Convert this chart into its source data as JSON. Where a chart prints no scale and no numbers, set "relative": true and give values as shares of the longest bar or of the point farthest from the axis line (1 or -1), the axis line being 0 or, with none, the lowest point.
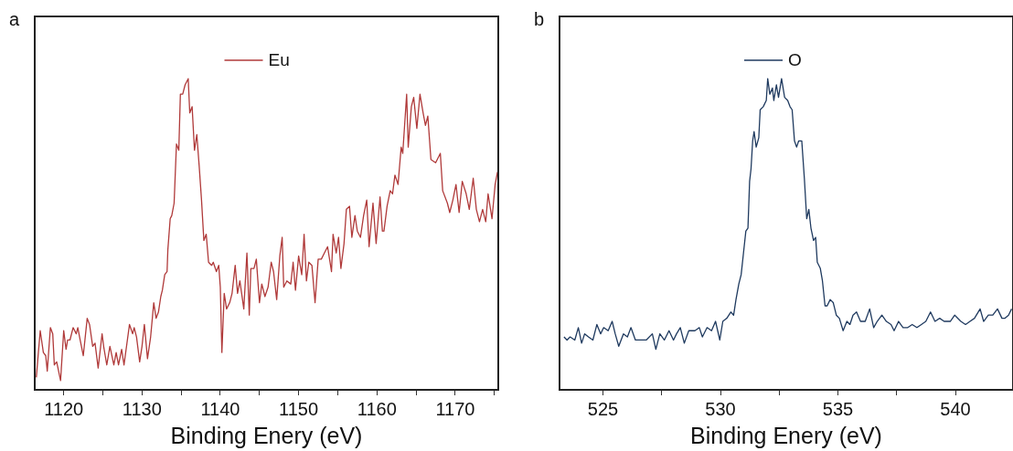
{
  "chart_data": [
    {
      "type": "line",
      "relative": true,
      "xlabel": "Binding Enery (eV)",
      "annotations": [
        "a"
      ],
      "legend": "top",
      "marker": "none",
      "line_style": "solid",
      "grid": false,
      "tick_labels": "x",
      "xlim": [
        1116.3,
        1175.5
      ],
      "xticks": [
        1120,
        {
          "value": 1125,
          "label": null
        },
        1130,
        {
          "value": 1135,
          "label": null
        },
        1140,
        {
          "value": 1145,
          "label": null
        },
        1150,
        {
          "value": 1155,
          "label": null
        },
        1160,
        {
          "value": 1165,
          "label": null
        },
        1170,
        {
          "value": 1175,
          "label": null
        }
      ],
      "series": [
        {
          "name": "Eu",
          "color": "#b03a3a",
          "x": [
            1116.5,
            1117.0,
            1117.4,
            1117.7,
            1117.9,
            1118.3,
            1118.6,
            1118.8,
            1119.1,
            1119.6,
            1120.0,
            1120.3,
            1120.5,
            1120.8,
            1121.2,
            1121.6,
            1121.8,
            1122.1,
            1122.5,
            1123.0,
            1123.3,
            1123.7,
            1124.0,
            1124.4,
            1124.9,
            1125.1,
            1125.5,
            1125.9,
            1126.4,
            1126.7,
            1127.0,
            1127.4,
            1127.7,
            1128.4,
            1128.8,
            1129.0,
            1129.3,
            1129.7,
            1130.0,
            1130.3,
            1130.7,
            1131.1,
            1131.5,
            1131.8,
            1132.1,
            1132.4,
            1132.6,
            1132.9,
            1133.2,
            1133.3,
            1133.6,
            1133.8,
            1134.1,
            1134.4,
            1134.7,
            1134.9,
            1135.2,
            1135.5,
            1135.9,
            1136.1,
            1136.4,
            1136.7,
            1137.0,
            1137.3,
            1137.6,
            1137.9,
            1138.2,
            1138.5,
            1138.9,
            1139.1,
            1139.5,
            1139.8,
            1140.0,
            1140.2,
            1140.5,
            1140.8,
            1141.2,
            1141.5,
            1141.9,
            1142.2,
            1142.5,
            1143.0,
            1143.4,
            1143.7,
            1143.9,
            1144.3,
            1144.6,
            1145.0,
            1145.3,
            1145.7,
            1146.1,
            1146.5,
            1146.8,
            1147.2,
            1147.6,
            1147.9,
            1148.1,
            1148.5,
            1149.0,
            1149.3,
            1149.6,
            1150.0,
            1150.4,
            1150.7,
            1151.0,
            1151.3,
            1151.7,
            1152.1,
            1152.5,
            1152.9,
            1153.3,
            1153.7,
            1154.2,
            1154.4,
            1154.8,
            1155.1,
            1155.4,
            1155.8,
            1156.1,
            1156.5,
            1156.8,
            1157.2,
            1157.5,
            1157.9,
            1158.3,
            1158.7,
            1159.0,
            1159.5,
            1159.9,
            1160.4,
            1160.7,
            1160.9,
            1161.3,
            1161.7,
            1162.0,
            1162.3,
            1162.7,
            1163.1,
            1163.3,
            1163.8,
            1164.0,
            1164.4,
            1164.7,
            1165.1,
            1165.5,
            1165.9,
            1166.2,
            1166.5,
            1166.9,
            1167.5,
            1168.1,
            1168.4,
            1169.0,
            1169.3,
            1169.7,
            1170.1,
            1170.5,
            1170.9,
            1171.4,
            1171.8,
            1172.3,
            1172.7,
            1173.1,
            1173.5,
            1173.9,
            1174.2,
            1174.7,
            1175.1,
            1175.4
          ],
          "values": [
            0.04,
            0.19,
            0.12,
            0.11,
            0.06,
            0.2,
            0.18,
            0.08,
            0.09,
            0.03,
            0.19,
            0.13,
            0.16,
            0.16,
            0.2,
            0.18,
            0.2,
            0.16,
            0.11,
            0.23,
            0.21,
            0.14,
            0.15,
            0.07,
            0.18,
            0.14,
            0.08,
            0.14,
            0.08,
            0.12,
            0.08,
            0.13,
            0.08,
            0.21,
            0.18,
            0.2,
            0.17,
            0.09,
            0.14,
            0.21,
            0.1,
            0.17,
            0.28,
            0.23,
            0.25,
            0.3,
            0.32,
            0.37,
            0.38,
            0.45,
            0.55,
            0.56,
            0.6,
            0.79,
            0.77,
            0.95,
            0.95,
            0.98,
            1,
            0.89,
            0.91,
            0.77,
            0.82,
            0.72,
            0.61,
            0.48,
            0.5,
            0.41,
            0.4,
            0.41,
            0.38,
            0.4,
            0.33,
            0.12,
            0.31,
            0.26,
            0.28,
            0.31,
            0.4,
            0.31,
            0.35,
            0.26,
            0.44,
            0.24,
            0.39,
            0.39,
            0.42,
            0.28,
            0.34,
            0.3,
            0.33,
            0.41,
            0.38,
            0.29,
            0.43,
            0.49,
            0.33,
            0.35,
            0.34,
            0.41,
            0.32,
            0.43,
            0.37,
            0.5,
            0.35,
            0.41,
            0.4,
            0.28,
            0.42,
            0.42,
            0.44,
            0.46,
            0.38,
            0.5,
            0.44,
            0.49,
            0.39,
            0.47,
            0.58,
            0.59,
            0.49,
            0.56,
            0.51,
            0.49,
            0.56,
            0.61,
            0.46,
            0.6,
            0.47,
            0.62,
            0.51,
            0.51,
            0.59,
            0.64,
            0.63,
            0.69,
            0.66,
            0.78,
            0.76,
            0.95,
            0.78,
            0.91,
            0.94,
            0.84,
            0.95,
            0.89,
            0.85,
            0.88,
            0.74,
            0.73,
            0.76,
            0.64,
            0.6,
            0.57,
            0.61,
            0.66,
            0.57,
            0.67,
            0.63,
            0.58,
            0.68,
            0.58,
            0.54,
            0.58,
            0.54,
            0.63,
            0.55,
            0.66,
            0.7
          ]
        }
      ]
    },
    {
      "type": "line",
      "relative": true,
      "xlabel": "Binding Enery (eV)",
      "annotations": [
        "b"
      ],
      "legend": "top",
      "marker": "none",
      "line_style": "solid",
      "grid": false,
      "tick_labels": "x",
      "xlim": [
        523.15,
        542.45
      ],
      "xticks": [
        525,
        {
          "value": 527.5,
          "label": null
        },
        530,
        {
          "value": 532.5,
          "label": null
        },
        535,
        {
          "value": 537.5,
          "label": null
        },
        540
      ],
      "series": [
        {
          "name": "O",
          "color": "#1f3a5f",
          "x": [
            523.34,
            523.47,
            523.6,
            523.8,
            523.95,
            524.09,
            524.22,
            524.38,
            524.57,
            524.74,
            524.9,
            525.03,
            525.22,
            525.39,
            525.52,
            525.67,
            525.87,
            526.04,
            526.19,
            526.38,
            526.58,
            526.84,
            527.1,
            527.25,
            527.42,
            527.61,
            527.81,
            528.0,
            528.13,
            528.29,
            528.46,
            528.65,
            528.91,
            529.1,
            529.23,
            529.43,
            529.62,
            529.79,
            529.97,
            530.1,
            530.27,
            530.44,
            530.56,
            530.66,
            530.78,
            530.88,
            530.98,
            531.08,
            531.17,
            531.24,
            531.3,
            531.37,
            531.43,
            531.52,
            531.63,
            531.69,
            531.82,
            531.95,
            532.01,
            532.1,
            532.21,
            532.27,
            532.38,
            532.47,
            532.6,
            532.73,
            532.86,
            532.96,
            533.05,
            533.15,
            533.24,
            533.33,
            533.46,
            533.57,
            533.67,
            533.76,
            533.85,
            533.96,
            534.05,
            534.12,
            534.25,
            534.34,
            534.45,
            534.54,
            534.67,
            534.8,
            534.93,
            535.06,
            535.22,
            535.38,
            535.51,
            535.64,
            535.79,
            535.96,
            536.16,
            536.35,
            536.52,
            536.67,
            536.87,
            537.06,
            537.26,
            537.39,
            537.58,
            537.77,
            537.97,
            538.16,
            538.36,
            538.55,
            538.74,
            538.94,
            539.13,
            539.33,
            539.52,
            539.78,
            539.97,
            540.23,
            540.43,
            540.62,
            540.81,
            541.05,
            541.2,
            541.4,
            541.59,
            541.79,
            541.98,
            542.11,
            542.26,
            542.39
          ],
          "values": [
            0.17,
            0.16,
            0.17,
            0.16,
            0.2,
            0.15,
            0.18,
            0.17,
            0.16,
            0.21,
            0.18,
            0.2,
            0.19,
            0.22,
            0.18,
            0.14,
            0.18,
            0.17,
            0.2,
            0.16,
            0.16,
            0.16,
            0.18,
            0.13,
            0.18,
            0.16,
            0.19,
            0.16,
            0.18,
            0.2,
            0.15,
            0.19,
            0.19,
            0.2,
            0.17,
            0.2,
            0.19,
            0.22,
            0.16,
            0.22,
            0.23,
            0.25,
            0.24,
            0.29,
            0.34,
            0.37,
            0.44,
            0.51,
            0.52,
            0.67,
            0.71,
            0.8,
            0.83,
            0.78,
            0.81,
            0.9,
            0.91,
            0.93,
            1,
            0.95,
            0.97,
            0.93,
            0.98,
            0.94,
            1,
            0.94,
            0.93,
            0.91,
            0.9,
            0.8,
            0.78,
            0.8,
            0.8,
            0.68,
            0.55,
            0.58,
            0.52,
            0.48,
            0.49,
            0.41,
            0.39,
            0.35,
            0.27,
            0.27,
            0.29,
            0.28,
            0.24,
            0.23,
            0.19,
            0.22,
            0.21,
            0.24,
            0.25,
            0.22,
            0.22,
            0.26,
            0.2,
            0.22,
            0.24,
            0.22,
            0.21,
            0.19,
            0.22,
            0.2,
            0.2,
            0.21,
            0.2,
            0.21,
            0.22,
            0.25,
            0.22,
            0.23,
            0.22,
            0.22,
            0.24,
            0.22,
            0.21,
            0.22,
            0.23,
            0.26,
            0.22,
            0.24,
            0.24,
            0.26,
            0.23,
            0.23,
            0.24,
            0.26
          ]
        }
      ]
    }
  ]
}
